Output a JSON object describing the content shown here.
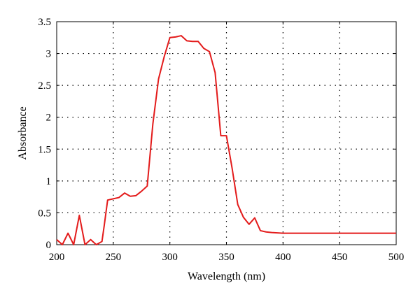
{
  "chart_data": {
    "type": "line",
    "xlabel": "Wavelength (nm)",
    "ylabel": "Absorbance",
    "xlim": [
      200,
      500
    ],
    "ylim": [
      0,
      3.5
    ],
    "grid": true,
    "x_ticks": [
      200,
      250,
      300,
      350,
      400,
      450,
      500
    ],
    "x_tick_labels": [
      "200",
      "250",
      "300",
      "350",
      "400",
      "450",
      "500"
    ],
    "y_ticks": [
      0,
      0.5,
      1,
      1.5,
      2,
      2.5,
      3,
      3.5
    ],
    "y_tick_labels": [
      "0",
      "0.5",
      "1",
      "1.5",
      "2",
      "2.5",
      "3",
      "3.5"
    ],
    "line_color": "#e31b1b",
    "series": [
      {
        "x": [
          200,
          205,
          210,
          215,
          220,
          225,
          230,
          235,
          240,
          242,
          245,
          250,
          255,
          260,
          265,
          270,
          275,
          280,
          285,
          290,
          295,
          300,
          305,
          310,
          315,
          320,
          325,
          330,
          335,
          340,
          345,
          350,
          355,
          360,
          365,
          370,
          375,
          380,
          385,
          390,
          400,
          420,
          450,
          480,
          500
        ],
        "y": [
          0.08,
          0.0,
          0.18,
          0.0,
          0.46,
          0.0,
          0.08,
          0.0,
          0.05,
          0.3,
          0.7,
          0.72,
          0.74,
          0.81,
          0.76,
          0.77,
          0.84,
          0.92,
          1.9,
          2.6,
          2.95,
          3.25,
          3.26,
          3.28,
          3.2,
          3.19,
          3.19,
          3.08,
          3.03,
          2.7,
          1.71,
          1.71,
          1.2,
          0.63,
          0.43,
          0.32,
          0.42,
          0.22,
          0.2,
          0.19,
          0.18,
          0.18,
          0.18,
          0.18,
          0.18
        ]
      }
    ]
  }
}
